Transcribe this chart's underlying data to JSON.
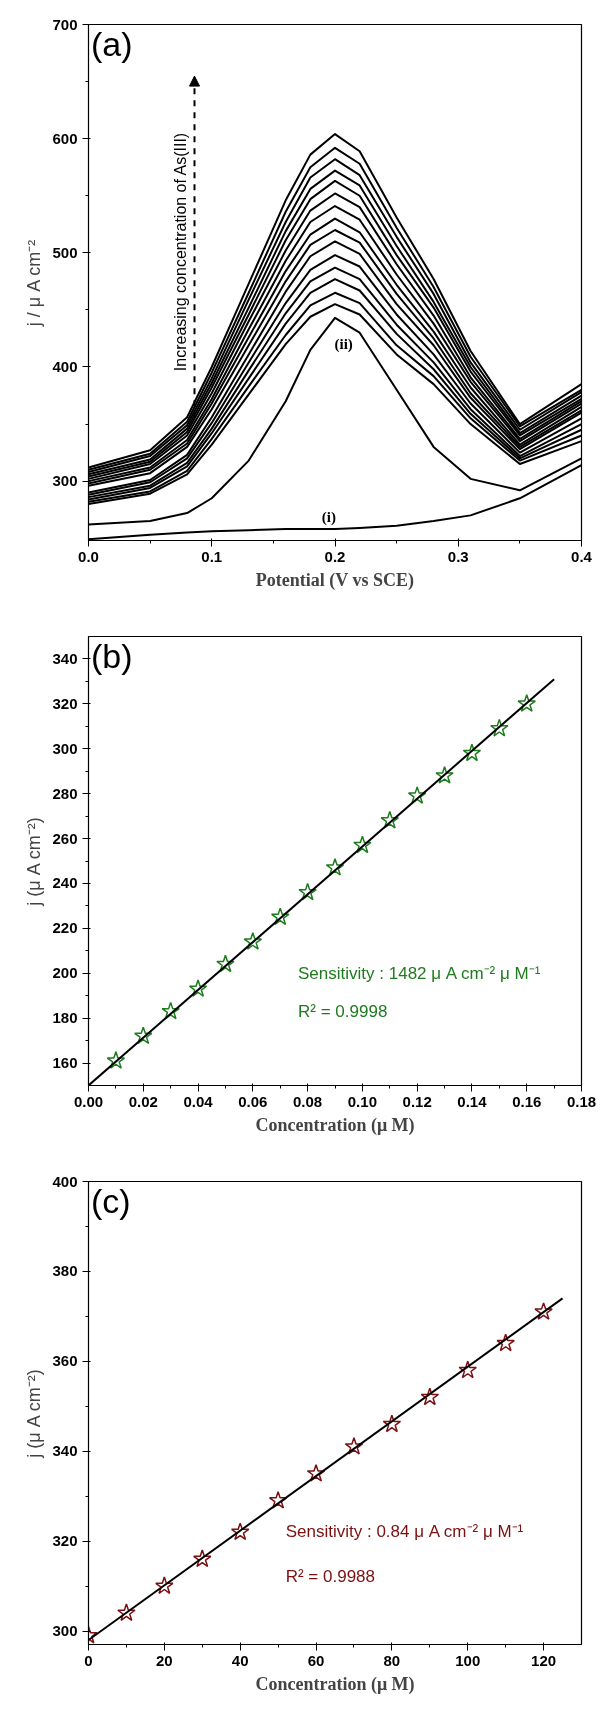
{
  "chart_data": [
    {
      "type": "line",
      "title": "(a)",
      "xlabel": "Potential (V vs SCE)",
      "ylabel": "j / μ A cm⁻²",
      "x": [
        0,
        0.05,
        0.08,
        0.1,
        0.13,
        0.16,
        0.18,
        0.2,
        0.22,
        0.25,
        0.28,
        0.31,
        0.35,
        0.4
      ],
      "xlim": [
        0,
        0.4
      ],
      "ylim": [
        248,
        700
      ],
      "xticks": [
        {
          "value": 0,
          "label": "0.0"
        },
        {
          "value": 0.05,
          "label": null
        },
        0.1,
        {
          "value": 0.15,
          "label": null
        },
        0.2,
        {
          "value": 0.25,
          "label": null
        },
        0.3,
        {
          "value": 0.35,
          "label": null
        },
        0.4
      ],
      "yticks": [
        300,
        {
          "value": 350,
          "label": null
        },
        400,
        {
          "value": 450,
          "label": null
        },
        500,
        {
          "value": 550,
          "label": null
        },
        600,
        {
          "value": 650,
          "label": null
        },
        700
      ],
      "annotations": [
        "Increasing concentration of As(III)",
        "(i)",
        "(ii)"
      ],
      "series": [
        {
          "color": "#000000",
          "values": [
            249,
            253,
            255,
            256,
            257,
            258,
            258,
            258,
            259,
            261,
            265,
            270,
            285,
            314
          ]
        },
        {
          "color": "#000000",
          "values": [
            262,
            265,
            272,
            285,
            318,
            370,
            415,
            443,
            430,
            380,
            330,
            302,
            292,
            320
          ]
        },
        {
          "color": "#000000",
          "values": [
            280,
            289,
            306,
            332,
            376,
            420,
            444,
            455,
            446,
            411,
            385,
            350,
            315,
            335
          ]
        },
        {
          "color": "#000000",
          "values": [
            282,
            291,
            309,
            337,
            383,
            428,
            454,
            465,
            456,
            419,
            392,
            355,
            318,
            340
          ]
        },
        {
          "color": "#000000",
          "values": [
            284,
            294,
            313,
            342,
            390,
            438,
            465,
            477,
            467,
            429,
            398,
            359,
            320,
            345
          ]
        },
        {
          "color": "#000000",
          "values": [
            286,
            296,
            316,
            346,
            397,
            447,
            475,
            487,
            477,
            437,
            404,
            363,
            322,
            350
          ]
        },
        {
          "color": "#000000",
          "values": [
            288,
            299,
            320,
            351,
            404,
            456,
            485,
            498,
            488,
            446,
            411,
            368,
            325,
            355
          ]
        },
        {
          "color": "#000000",
          "values": [
            290,
            301,
            323,
            356,
            411,
            466,
            497,
            510,
            499,
            455,
            419,
            373,
            328,
            360
          ]
        },
        {
          "color": "#000000",
          "values": [
            296,
            307,
            330,
            363,
            419,
            475,
            507,
            520,
            509,
            464,
            425,
            377,
            330,
            362
          ]
        },
        {
          "color": "#000000",
          "values": [
            298,
            310,
            333,
            368,
            426,
            484,
            516,
            530,
            518,
            472,
            431,
            382,
            332,
            365
          ]
        },
        {
          "color": "#000000",
          "values": [
            300,
            312,
            336,
            372,
            433,
            493,
            527,
            541,
            529,
            481,
            438,
            387,
            335,
            368
          ]
        },
        {
          "color": "#000000",
          "values": [
            302,
            315,
            340,
            377,
            440,
            502,
            537,
            552,
            540,
            490,
            445,
            391,
            337,
            370
          ]
        },
        {
          "color": "#000000",
          "values": [
            304,
            317,
            343,
            382,
            446,
            511,
            547,
            563,
            550,
            498,
            452,
            396,
            340,
            372
          ]
        },
        {
          "color": "#000000",
          "values": [
            306,
            319,
            346,
            386,
            452,
            519,
            556,
            572,
            559,
            506,
            457,
            400,
            342,
            375
          ]
        },
        {
          "color": "#000000",
          "values": [
            308,
            322,
            349,
            390,
            459,
            527,
            566,
            582,
            568,
            514,
            464,
            404,
            345,
            378
          ]
        },
        {
          "color": "#000000",
          "values": [
            310,
            324,
            352,
            395,
            465,
            536,
            575,
            592,
            578,
            522,
            470,
            409,
            348,
            380
          ]
        },
        {
          "color": "#000000",
          "values": [
            312,
            327,
            356,
            400,
            473,
            546,
            586,
            604,
            589,
            531,
            477,
            414,
            350,
            385
          ]
        }
      ]
    },
    {
      "type": "scatter",
      "title": "(b)",
      "xlabel": "Concentration (μ M)",
      "ylabel": "j (μ A cm⁻²)",
      "x": [
        0.01,
        0.02,
        0.03,
        0.04,
        0.05,
        0.06,
        0.07,
        0.08,
        0.09,
        0.1,
        0.11,
        0.12,
        0.13,
        0.14,
        0.15,
        0.16
      ],
      "xlim": [
        0,
        0.18
      ],
      "ylim": [
        150,
        350
      ],
      "xticks": [
        {
          "value": 0,
          "label": "0.00"
        },
        {
          "value": 0.01,
          "label": null
        },
        0.02,
        {
          "value": 0.03,
          "label": null
        },
        0.04,
        {
          "value": 0.05,
          "label": null
        },
        0.06,
        {
          "value": 0.07,
          "label": null
        },
        0.08,
        {
          "value": 0.09,
          "label": null
        },
        {
          "value": 0.1,
          "label": "0.10"
        },
        {
          "value": 0.11,
          "label": null
        },
        0.12,
        {
          "value": 0.13,
          "label": null
        },
        0.14,
        {
          "value": 0.15,
          "label": null
        },
        0.16,
        {
          "value": 0.17,
          "label": null
        },
        0.18
      ],
      "yticks": [
        160,
        {
          "value": 170,
          "label": null
        },
        180,
        {
          "value": 190,
          "label": null
        },
        200,
        {
          "value": 210,
          "label": null
        },
        220,
        {
          "value": 230,
          "label": null
        },
        240,
        {
          "value": 250,
          "label": null
        },
        260,
        {
          "value": 270,
          "label": null
        },
        280,
        {
          "value": 290,
          "label": null
        },
        300,
        {
          "value": 310,
          "label": null
        },
        320,
        {
          "value": 330,
          "label": null
        },
        340
      ],
      "annotations": [
        "Sensitivity : 1482 μ A cm⁻² μ M⁻¹",
        "R² = 0.9998"
      ],
      "series": [
        {
          "color": "#1e7b1e",
          "marker": "star",
          "values": [
            161,
            172,
            183,
            193,
            204,
            214,
            225,
            236,
            247,
            257,
            268,
            279,
            288,
            298,
            309,
            320
          ]
        },
        {
          "type": "line",
          "marker": "none",
          "color": "#000000",
          "x": [
            0,
            0.17
          ],
          "values": [
            150,
            331
          ]
        }
      ]
    },
    {
      "type": "scatter",
      "title": "(c)",
      "xlabel": "Concentration (μ M)",
      "ylabel": "j (μ A cm⁻²)",
      "x": [
        0,
        10,
        20,
        30,
        40,
        50,
        60,
        70,
        80,
        90,
        100,
        110,
        120
      ],
      "xlim": [
        0,
        130
      ],
      "ylim": [
        297,
        400
      ],
      "xticks": [
        0,
        {
          "value": 10,
          "label": null
        },
        20,
        {
          "value": 30,
          "label": null
        },
        40,
        {
          "value": 50,
          "label": null
        },
        60,
        {
          "value": 70,
          "label": null
        },
        80,
        {
          "value": 90,
          "label": null
        },
        100,
        {
          "value": 110,
          "label": null
        },
        120
      ],
      "yticks": [
        300,
        {
          "value": 310,
          "label": null
        },
        320,
        {
          "value": 330,
          "label": null
        },
        340,
        {
          "value": 350,
          "label": null
        },
        360,
        {
          "value": 370,
          "label": null
        },
        380,
        {
          "value": 390,
          "label": null
        },
        400
      ],
      "annotations": [
        "Sensitivity : 0.84 μ A cm⁻² μ M⁻¹",
        "R² = 0.9988"
      ],
      "series": [
        {
          "color": "#7b1010",
          "marker": "star",
          "values": [
            299,
            304,
            310,
            316,
            322,
            329,
            335,
            341,
            346,
            352,
            358,
            364,
            371
          ]
        },
        {
          "type": "line",
          "marker": "none",
          "color": "#000000",
          "x": [
            0,
            125
          ],
          "values": [
            298,
            374
          ]
        }
      ]
    }
  ]
}
